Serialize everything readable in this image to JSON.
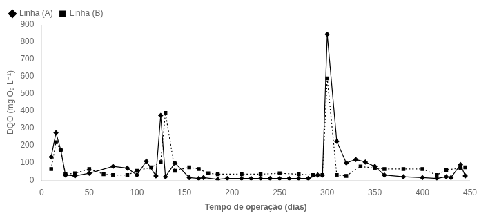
{
  "chart_data": {
    "type": "line",
    "xlabel": "Tempo de operação (dias)",
    "ylabel": "DQO (mg O₂ L⁻¹)",
    "xlim": [
      0,
      450
    ],
    "ylim": [
      0,
      900
    ],
    "xticks": [
      0,
      50,
      100,
      150,
      200,
      250,
      300,
      350,
      400,
      450
    ],
    "yticks": [
      0,
      100,
      200,
      300,
      400,
      500,
      600,
      700,
      800,
      900
    ],
    "grid": false,
    "legend": "upper left",
    "series": [
      {
        "name": "Linha (A)",
        "color": "#000000",
        "marker": "diamond",
        "line_style": "solid",
        "x": [
          10,
          15,
          20,
          25,
          35,
          50,
          75,
          90,
          100,
          110,
          120,
          125,
          130,
          140,
          155,
          165,
          170,
          185,
          195,
          210,
          220,
          230,
          240,
          250,
          260,
          270,
          280,
          290,
          295,
          300,
          310,
          320,
          330,
          340,
          350,
          360,
          380,
          400,
          415,
          425,
          430,
          440,
          445
        ],
        "values": [
          135,
          275,
          175,
          30,
          25,
          40,
          80,
          70,
          30,
          110,
          25,
          375,
          20,
          100,
          15,
          10,
          15,
          5,
          10,
          10,
          10,
          10,
          10,
          10,
          10,
          10,
          10,
          30,
          30,
          845,
          225,
          100,
          120,
          105,
          80,
          30,
          20,
          15,
          10,
          20,
          15,
          90,
          25
        ]
      },
      {
        "name": "Linha (B)",
        "color": "#000000",
        "marker": "square",
        "line_style": "dotted",
        "x": [
          10,
          15,
          20,
          25,
          35,
          50,
          65,
          75,
          90,
          100,
          115,
          125,
          130,
          140,
          155,
          165,
          175,
          185,
          210,
          230,
          250,
          270,
          285,
          295,
          300,
          310,
          320,
          335,
          350,
          360,
          380,
          400,
          415,
          425,
          440,
          445
        ],
        "values": [
          65,
          220,
          175,
          35,
          40,
          65,
          35,
          30,
          30,
          55,
          75,
          105,
          390,
          55,
          75,
          65,
          40,
          35,
          35,
          35,
          40,
          35,
          30,
          30,
          590,
          30,
          25,
          80,
          70,
          65,
          65,
          65,
          30,
          60,
          70,
          75
        ]
      }
    ]
  }
}
